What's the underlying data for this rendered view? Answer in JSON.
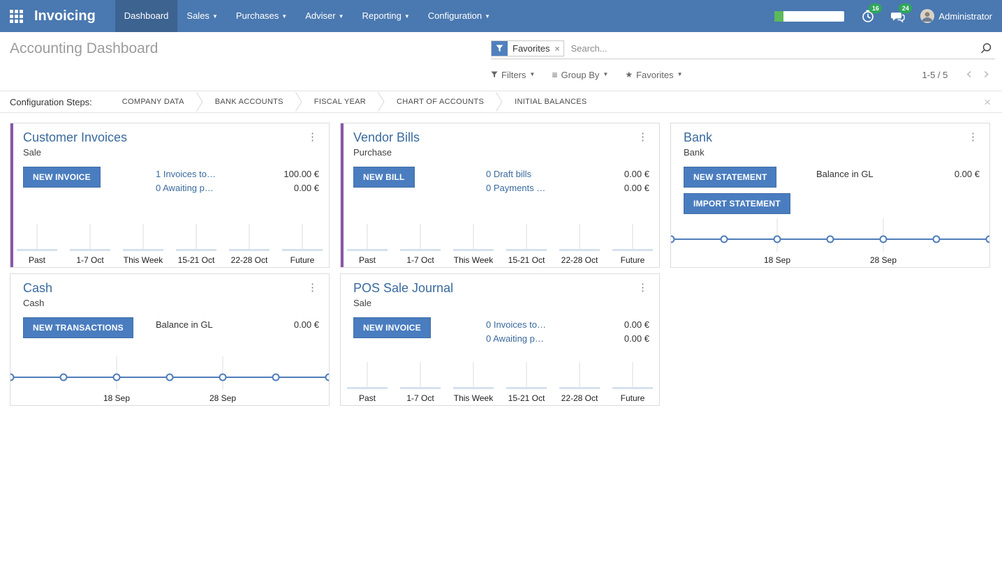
{
  "colors": {
    "navbar_bg": "#4a78b0",
    "navbar_active_bg": "#3d6391",
    "primary_button": "#4a7dbf",
    "journal_strip_purple": "#8858a8",
    "badge_green": "#2ea65a",
    "progress_green": "#5cb85c",
    "link_blue": "#3a6a9e",
    "chart_line_blue": "#4f7cba",
    "chart_bar_fill": "#d6e1ee"
  },
  "navbar": {
    "app_title": "Invoicing",
    "menus": [
      {
        "label": "Dashboard",
        "active": true,
        "caret": false
      },
      {
        "label": "Sales",
        "active": false,
        "caret": true
      },
      {
        "label": "Purchases",
        "active": false,
        "caret": true
      },
      {
        "label": "Adviser",
        "active": false,
        "caret": true
      },
      {
        "label": "Reporting",
        "active": false,
        "caret": true
      },
      {
        "label": "Configuration",
        "active": false,
        "caret": true
      }
    ],
    "systray": {
      "planner_progress_pct": 13,
      "activities_count": "16",
      "messages_count": "24",
      "user_name": "Administrator"
    }
  },
  "control_panel": {
    "title": "Accounting Dashboard",
    "search": {
      "facet_label": "Favorites",
      "placeholder": "Search..."
    },
    "filter_menus": {
      "filters": "Filters",
      "group_by": "Group By",
      "favorites": "Favorites"
    },
    "pager": {
      "text": "1-5 / 5",
      "prev": "‹",
      "next": "›"
    }
  },
  "config_steps": {
    "label": "Configuration Steps:",
    "steps": [
      "COMPANY DATA",
      "BANK ACCOUNTS",
      "FISCAL YEAR",
      "CHART OF ACCOUNTS",
      "INITIAL BALANCES"
    ]
  },
  "cards": [
    {
      "title": "Customer Invoices",
      "subtitle": "Sale",
      "color_strip": "#8858a8",
      "buttons": [
        "NEW INVOICE"
      ],
      "rows": [
        {
          "text": "1 Invoices to…",
          "amount": "100.00 €",
          "link": true
        },
        {
          "text": "0 Awaiting p…",
          "amount": "0.00 €",
          "link": true
        }
      ],
      "chart": {
        "type": "bar",
        "categories": [
          "Past",
          "1-7 Oct",
          "This Week",
          "15-21 Oct",
          "22-28 Oct",
          "Future"
        ],
        "values": [
          0,
          0,
          0,
          0,
          0,
          0
        ]
      }
    },
    {
      "title": "Vendor Bills",
      "subtitle": "Purchase",
      "color_strip": "#8858a8",
      "buttons": [
        "NEW BILL"
      ],
      "rows": [
        {
          "text": "0 Draft bills",
          "amount": "0.00 €",
          "link": true
        },
        {
          "text": "0 Payments …",
          "amount": "0.00 €",
          "link": true
        }
      ],
      "chart": {
        "type": "bar",
        "categories": [
          "Past",
          "1-7 Oct",
          "This Week",
          "15-21 Oct",
          "22-28 Oct",
          "Future"
        ],
        "values": [
          0,
          0,
          0,
          0,
          0,
          0
        ]
      }
    },
    {
      "title": "Bank",
      "subtitle": "Bank",
      "color_strip": null,
      "buttons": [
        "NEW STATEMENT",
        "IMPORT STATEMENT"
      ],
      "rows": [
        {
          "text": "Balance in GL",
          "amount": "0.00 €",
          "link": false
        }
      ],
      "chart": {
        "type": "line",
        "values": [
          0,
          0,
          0,
          0,
          0,
          0,
          0
        ],
        "x_labels": [
          "18 Sep",
          "28 Sep"
        ]
      }
    },
    {
      "title": "Cash",
      "subtitle": "Cash",
      "color_strip": null,
      "buttons": [
        "NEW TRANSACTIONS"
      ],
      "rows": [
        {
          "text": "Balance in GL",
          "amount": "0.00 €",
          "link": false
        }
      ],
      "chart": {
        "type": "line",
        "values": [
          0,
          0,
          0,
          0,
          0,
          0,
          0
        ],
        "x_labels": [
          "18 Sep",
          "28 Sep"
        ]
      }
    },
    {
      "title": "POS Sale Journal",
      "subtitle": "Sale",
      "color_strip": null,
      "buttons": [
        "NEW INVOICE"
      ],
      "rows": [
        {
          "text": "0 Invoices to…",
          "amount": "0.00 €",
          "link": true
        },
        {
          "text": "0 Awaiting p…",
          "amount": "0.00 €",
          "link": true
        }
      ],
      "chart": {
        "type": "bar",
        "categories": [
          "Past",
          "1-7 Oct",
          "This Week",
          "15-21 Oct",
          "22-28 Oct",
          "Future"
        ],
        "values": [
          0,
          0,
          0,
          0,
          0,
          0
        ]
      }
    }
  ]
}
